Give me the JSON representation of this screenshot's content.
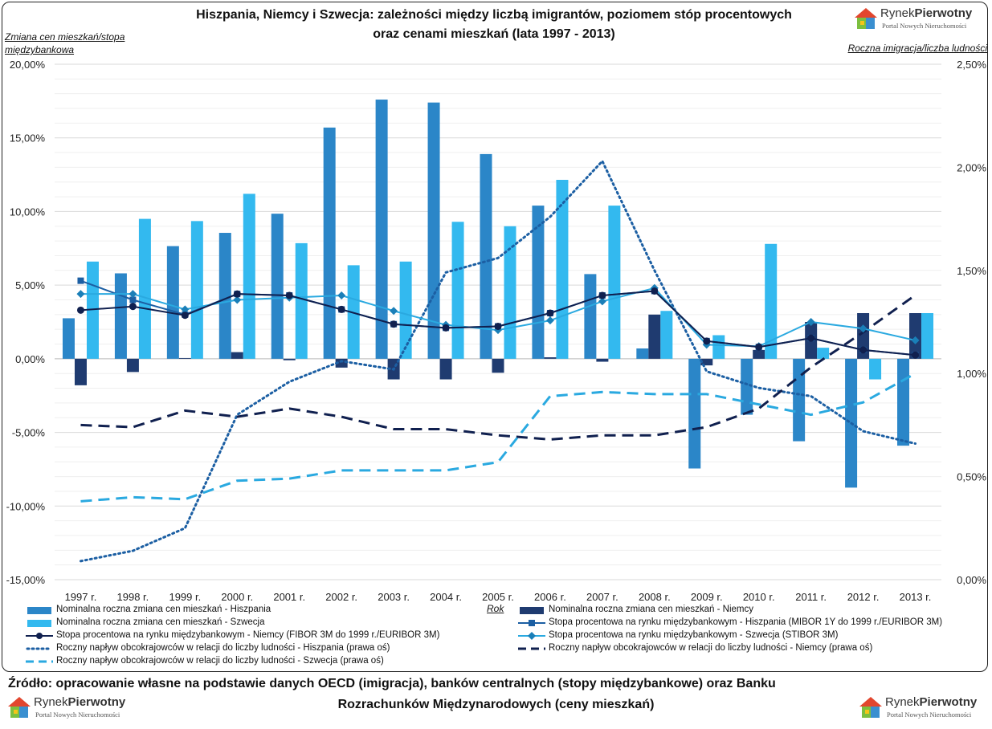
{
  "header": {
    "title_line1": "Hiszpania, Niemcy i Szwecja: zależności między liczbą imigrantów, poziomem stóp procentowych",
    "title_line2": "oraz cenami mieszkań (lata 1997 - 2013)"
  },
  "logo": {
    "brand_part1": "Rynek",
    "brand_part2": "Pierwotny",
    "tagline": "Portal Nowych Nieruchomości"
  },
  "footer": {
    "source_line1": "Źródło: opracowanie własne na podstawie danych OECD (imigracja), banków centralnych (stopy międzybankowe) oraz Banku",
    "source_line2": "Rozrachunków Międzynarodowych (ceny mieszkań)"
  },
  "colors": {
    "spain_bar": "#2b86c8",
    "germany_bar": "#1f3b70",
    "sweden_bar": "#33b9ef",
    "germany_line": "#10204f",
    "spain_rate": "#1c5fa3",
    "sweden_rate": "#2aa9e0"
  },
  "chart_data": {
    "type": "bar",
    "categories": [
      "1997 r.",
      "1998 r.",
      "1999 r.",
      "2000 r.",
      "2001 r.",
      "2002 r.",
      "2003 r.",
      "2004 r.",
      "2005 r.",
      "2006 r.",
      "2007 r.",
      "2008 r.",
      "2009 r.",
      "2010 r.",
      "2011 r.",
      "2012 r.",
      "2013 r."
    ],
    "xlabel": "Rok",
    "ylabel_left": "Zmiana cen mieszkań/stopa międzybankowa",
    "ylabel_right": "Roczna imigracja/liczba ludności",
    "ylim_left": [
      -15,
      20
    ],
    "ylim_right": [
      0,
      2.5
    ],
    "yticks_left": [
      "20,00%",
      "15,00%",
      "10,00%",
      "5,00%",
      "0,00%",
      "-5,00%",
      "-10,00%",
      "-15,00%"
    ],
    "yticks_right": [
      "2,50%",
      "2,00%",
      "1,50%",
      "1,00%",
      "0,50%",
      "0,00%"
    ],
    "legend_position": "bottom",
    "series": [
      {
        "name": "Nominalna roczna zmiana cen mieszkań - Hiszpania",
        "kind": "bar",
        "axis": "left",
        "values": [
          2.75,
          5.8,
          7.65,
          8.55,
          9.85,
          15.7,
          17.6,
          17.4,
          13.9,
          10.4,
          5.75,
          0.7,
          -7.45,
          -3.8,
          -5.6,
          -8.75,
          -5.9
        ]
      },
      {
        "name": "Nominalna roczna zmiana cen mieszkań - Niemcy",
        "kind": "bar",
        "axis": "left",
        "values": [
          -1.8,
          -0.9,
          0.05,
          0.45,
          -0.1,
          -0.6,
          -1.4,
          -1.4,
          -0.95,
          0.1,
          -0.2,
          3.0,
          -0.45,
          0.6,
          2.5,
          3.1,
          3.1
        ]
      },
      {
        "name": "Nominalna roczna zmiana cen mieszkań - Szwecja",
        "kind": "bar",
        "axis": "left",
        "values": [
          6.6,
          9.5,
          9.35,
          11.2,
          7.85,
          6.35,
          6.6,
          9.3,
          9.0,
          12.15,
          10.4,
          3.25,
          1.6,
          7.8,
          0.75,
          -1.4,
          3.1
        ]
      },
      {
        "name": "Stopa procentowa na rynku międzybankowym - Hiszpania (MIBOR 1Y do 1999 r./EURIBOR 3M)",
        "kind": "line-square",
        "axis": "left",
        "values": [
          5.3,
          4.0,
          3.0,
          4.4,
          4.3,
          3.35,
          2.35,
          2.1,
          2.2,
          3.1,
          4.3,
          4.6,
          1.2,
          0.8,
          1.4,
          0.6,
          0.25
        ]
      },
      {
        "name": "Stopa procentowa na rynku międzybankowym - Niemcy (FIBOR 3M do 1999 r./EURIBOR 3M)",
        "kind": "line-circle",
        "axis": "left",
        "values": [
          3.3,
          3.55,
          2.95,
          4.4,
          4.3,
          3.35,
          2.35,
          2.1,
          2.2,
          3.1,
          4.3,
          4.6,
          1.2,
          0.8,
          1.4,
          0.6,
          0.25
        ]
      },
      {
        "name": "Stopa procentowa na rynku międzybankowym - Szwecja (STIBOR 3M)",
        "kind": "line-diamond",
        "axis": "left",
        "values": [
          4.4,
          4.4,
          3.35,
          4.0,
          4.15,
          4.3,
          3.25,
          2.3,
          1.95,
          2.6,
          3.9,
          4.8,
          0.95,
          0.85,
          2.5,
          2.05,
          1.25
        ]
      },
      {
        "name": "Roczny napływ obcokrajowców w relacji do liczby ludności - Hiszpania (prawa oś)",
        "kind": "dotted",
        "axis": "right",
        "values": [
          0.09,
          0.14,
          0.25,
          0.8,
          0.96,
          1.06,
          1.02,
          1.49,
          1.56,
          1.76,
          2.03,
          1.5,
          1.01,
          0.93,
          0.89,
          0.72,
          0.66
        ]
      },
      {
        "name": "Roczny napływ obcokrajowców w relacji do liczby ludności - Niemcy (prawa oś)",
        "kind": "dashed",
        "axis": "right",
        "values": [
          0.75,
          0.74,
          0.82,
          0.79,
          0.83,
          0.79,
          0.73,
          0.73,
          0.7,
          0.68,
          0.7,
          0.7,
          0.74,
          0.83,
          1.03,
          1.2,
          1.38
        ]
      },
      {
        "name": "Roczny napływ obcokrajowców w relacji do liczby ludności - Szwecja (prawa oś)",
        "kind": "dashed-light",
        "axis": "right",
        "values": [
          0.38,
          0.4,
          0.39,
          0.48,
          0.49,
          0.53,
          0.53,
          0.53,
          0.57,
          0.89,
          0.91,
          0.9,
          0.9,
          0.85,
          0.8,
          0.86,
          1.0
        ]
      }
    ]
  }
}
